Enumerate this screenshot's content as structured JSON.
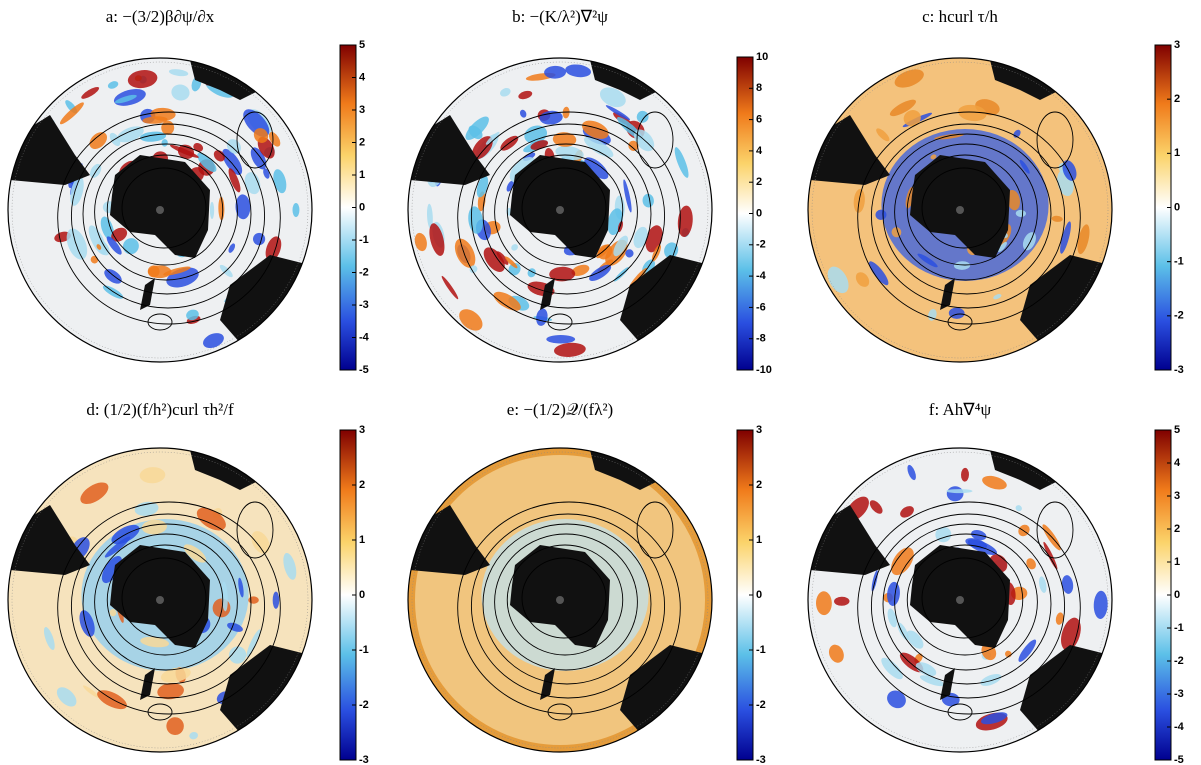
{
  "chart_data": [
    {
      "type": "map",
      "title": "a: −(3/2)β∂ψ/∂x",
      "ylim": [
        -5,
        5
      ],
      "yticks": [
        -5,
        -4,
        -3,
        -2,
        -1,
        0,
        1,
        2,
        3,
        4,
        5
      ]
    },
    {
      "type": "map",
      "title": "b: −(K/λ²)∇²ψ",
      "ylim": [
        -10,
        10
      ],
      "yticks": [
        -10,
        -8,
        -6,
        -4,
        -2,
        0,
        2,
        4,
        6,
        8,
        10
      ]
    },
    {
      "type": "map",
      "title": "c: hcurl τ/h",
      "ylim": [
        -3,
        3
      ],
      "yticks": [
        -3,
        -2,
        -1,
        0,
        1,
        2,
        3
      ]
    },
    {
      "type": "map",
      "title": "d: (1/2)(f/h²)curl τh²/f",
      "ylim": [
        -3,
        3
      ],
      "yticks": [
        -3,
        -2,
        -1,
        0,
        1,
        2,
        3
      ]
    },
    {
      "type": "map",
      "title": "e: −(1/2)𝒬/(fλ²)",
      "ylim": [
        -3,
        3
      ],
      "yticks": [
        -3,
        -2,
        -1,
        0,
        1,
        2,
        3
      ]
    },
    {
      "type": "map",
      "title": "f: Ah∇⁴ψ",
      "ylim": [
        -5,
        5
      ],
      "yticks": [
        -5,
        -4,
        -3,
        -2,
        -1,
        0,
        1,
        2,
        3,
        4,
        5
      ]
    }
  ]
}
